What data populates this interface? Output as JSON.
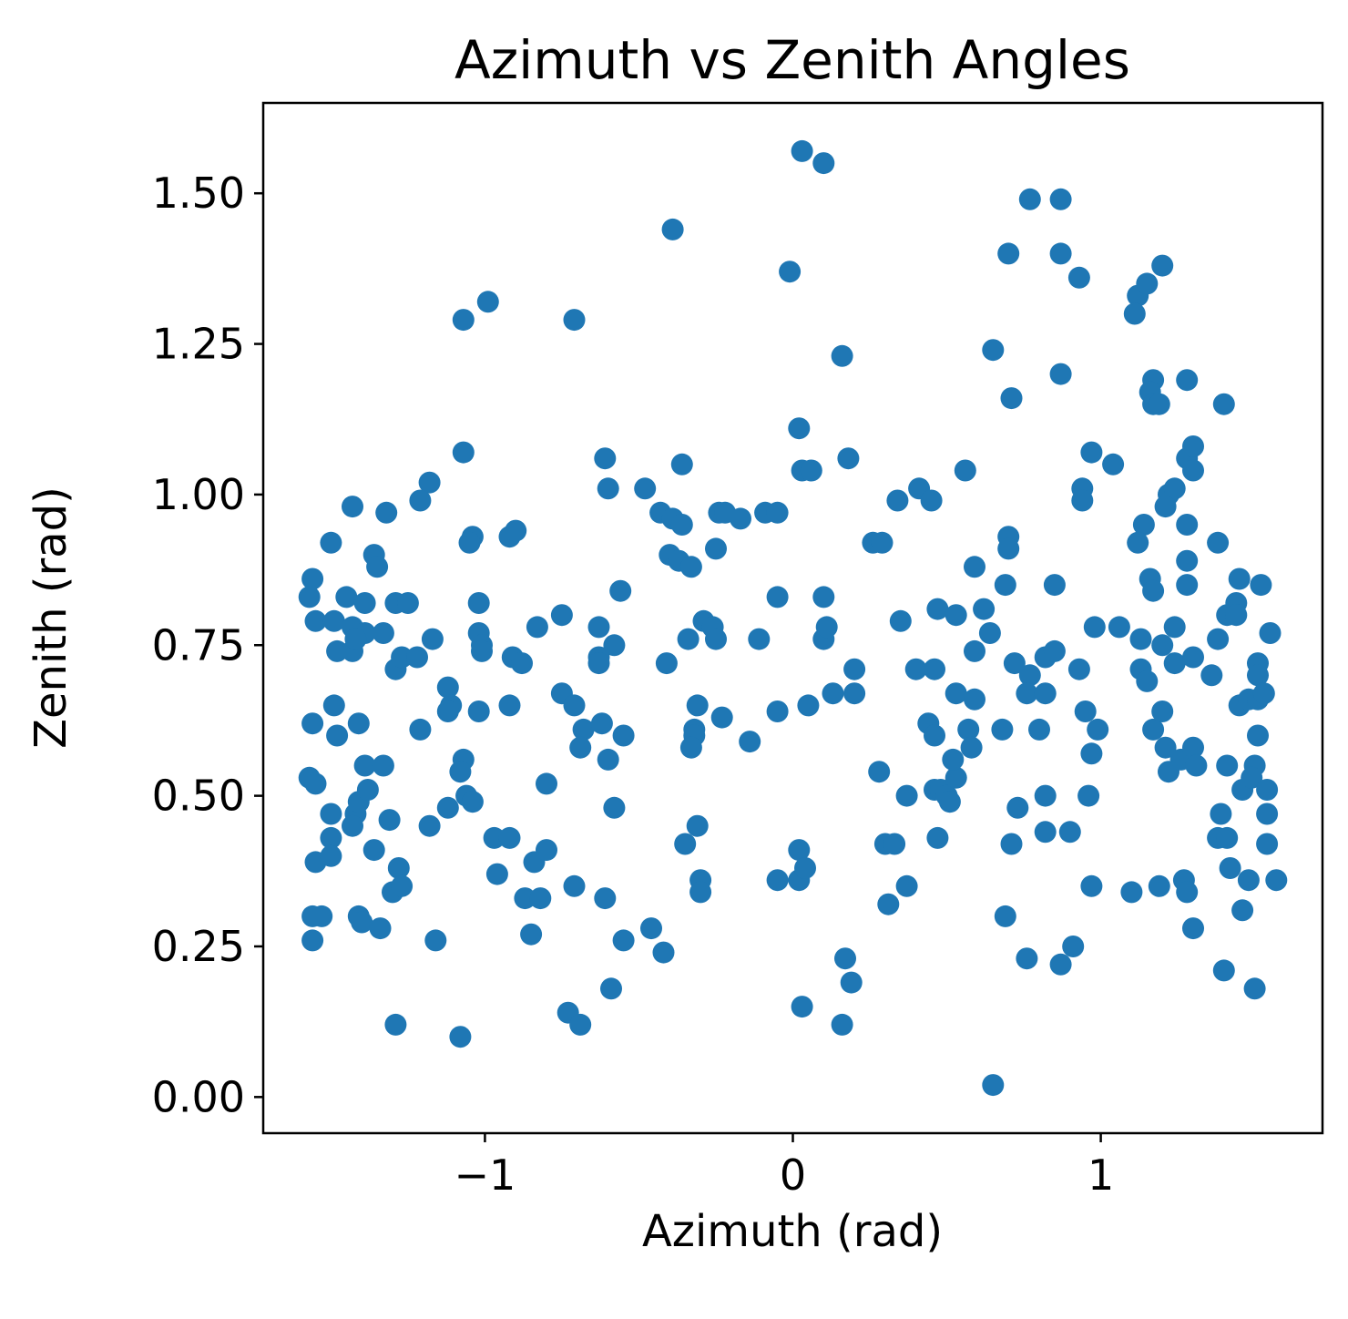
{
  "chart_data": {
    "type": "scatter",
    "title": "Azimuth vs Zenith Angles",
    "xlabel": "Azimuth (rad)",
    "ylabel": "Zenith (rad)",
    "xlim": [
      -1.72,
      1.72
    ],
    "ylim": [
      -0.06,
      1.65
    ],
    "grid": false,
    "marker_color": "#1f77b4",
    "x_ticks": [
      {
        "value": -1,
        "label": "−1"
      },
      {
        "value": 0,
        "label": "0"
      },
      {
        "value": 1,
        "label": "1"
      }
    ],
    "y_ticks": [
      {
        "value": 0.0,
        "label": "0.00"
      },
      {
        "value": 0.25,
        "label": "0.25"
      },
      {
        "value": 0.5,
        "label": "0.50"
      },
      {
        "value": 0.75,
        "label": "0.75"
      },
      {
        "value": 1.0,
        "label": "1.00"
      },
      {
        "value": 1.25,
        "label": "1.25"
      },
      {
        "value": 1.5,
        "label": "1.50"
      }
    ],
    "points": [
      [
        0.03,
        1.57
      ],
      [
        0.1,
        1.55
      ],
      [
        -0.39,
        1.44
      ],
      [
        0.77,
        1.49
      ],
      [
        0.87,
        1.49
      ],
      [
        0.7,
        1.4
      ],
      [
        0.87,
        1.4
      ],
      [
        -0.01,
        1.37
      ],
      [
        0.93,
        1.36
      ],
      [
        1.2,
        1.38
      ],
      [
        1.12,
        1.33
      ],
      [
        1.15,
        1.35
      ],
      [
        1.11,
        1.3
      ],
      [
        -0.99,
        1.32
      ],
      [
        -1.07,
        1.29
      ],
      [
        -0.71,
        1.29
      ],
      [
        0.65,
        1.24
      ],
      [
        0.16,
        1.23
      ],
      [
        0.87,
        1.2
      ],
      [
        1.17,
        1.19
      ],
      [
        1.28,
        1.19
      ],
      [
        0.71,
        1.16
      ],
      [
        1.16,
        1.17
      ],
      [
        1.17,
        1.15
      ],
      [
        1.19,
        1.15
      ],
      [
        1.4,
        1.15
      ],
      [
        0.02,
        1.11
      ],
      [
        -1.07,
        1.07
      ],
      [
        -0.61,
        1.06
      ],
      [
        0.18,
        1.06
      ],
      [
        0.97,
        1.07
      ],
      [
        1.04,
        1.05
      ],
      [
        1.28,
        1.06
      ],
      [
        1.3,
        1.08
      ],
      [
        1.3,
        1.04
      ],
      [
        0.03,
        1.04
      ],
      [
        0.06,
        1.04
      ],
      [
        -0.36,
        1.05
      ],
      [
        0.56,
        1.04
      ],
      [
        -0.6,
        1.01
      ],
      [
        -0.48,
        1.01
      ],
      [
        -1.18,
        1.02
      ],
      [
        -1.21,
        0.99
      ],
      [
        -1.43,
        0.98
      ],
      [
        -1.32,
        0.97
      ],
      [
        0.41,
        1.01
      ],
      [
        0.45,
        0.99
      ],
      [
        0.34,
        0.99
      ],
      [
        0.94,
        1.01
      ],
      [
        0.94,
        0.99
      ],
      [
        1.22,
        1.0
      ],
      [
        1.24,
        1.01
      ],
      [
        1.21,
        0.98
      ],
      [
        -0.43,
        0.97
      ],
      [
        -0.39,
        0.96
      ],
      [
        -0.36,
        0.95
      ],
      [
        -0.24,
        0.97
      ],
      [
        -0.22,
        0.97
      ],
      [
        -0.17,
        0.96
      ],
      [
        -0.09,
        0.97
      ],
      [
        -0.05,
        0.97
      ],
      [
        -1.5,
        0.92
      ],
      [
        -1.36,
        0.9
      ],
      [
        -1.35,
        0.88
      ],
      [
        -1.04,
        0.93
      ],
      [
        -1.05,
        0.92
      ],
      [
        -0.92,
        0.93
      ],
      [
        -0.9,
        0.94
      ],
      [
        -0.4,
        0.9
      ],
      [
        -0.37,
        0.89
      ],
      [
        -0.33,
        0.88
      ],
      [
        -0.25,
        0.91
      ],
      [
        0.26,
        0.92
      ],
      [
        0.29,
        0.92
      ],
      [
        0.7,
        0.93
      ],
      [
        0.7,
        0.91
      ],
      [
        1.14,
        0.95
      ],
      [
        1.12,
        0.92
      ],
      [
        1.28,
        0.95
      ],
      [
        1.38,
        0.92
      ],
      [
        1.28,
        0.89
      ],
      [
        -1.56,
        0.86
      ],
      [
        -1.57,
        0.83
      ],
      [
        -1.45,
        0.83
      ],
      [
        -1.39,
        0.82
      ],
      [
        -1.29,
        0.82
      ],
      [
        -1.25,
        0.82
      ],
      [
        -1.02,
        0.82
      ],
      [
        -0.05,
        0.83
      ],
      [
        0.1,
        0.83
      ],
      [
        0.59,
        0.88
      ],
      [
        0.69,
        0.85
      ],
      [
        0.85,
        0.85
      ],
      [
        1.16,
        0.86
      ],
      [
        1.17,
        0.84
      ],
      [
        1.28,
        0.85
      ],
      [
        1.45,
        0.86
      ],
      [
        1.52,
        0.85
      ],
      [
        -1.55,
        0.79
      ],
      [
        -1.49,
        0.79
      ],
      [
        -1.43,
        0.78
      ],
      [
        -1.39,
        0.77
      ],
      [
        -1.33,
        0.77
      ],
      [
        -1.17,
        0.76
      ],
      [
        -0.83,
        0.78
      ],
      [
        -0.75,
        0.8
      ],
      [
        -0.63,
        0.78
      ],
      [
        -0.56,
        0.84
      ],
      [
        -0.29,
        0.79
      ],
      [
        -0.26,
        0.78
      ],
      [
        0.47,
        0.81
      ],
      [
        0.53,
        0.8
      ],
      [
        0.62,
        0.81
      ],
      [
        0.64,
        0.77
      ],
      [
        0.35,
        0.79
      ],
      [
        0.98,
        0.78
      ],
      [
        1.06,
        0.78
      ],
      [
        1.24,
        0.78
      ],
      [
        1.41,
        0.8
      ],
      [
        1.44,
        0.82
      ],
      [
        1.44,
        0.8
      ],
      [
        1.55,
        0.77
      ],
      [
        -1.48,
        0.74
      ],
      [
        -1.43,
        0.74
      ],
      [
        -1.42,
        0.76
      ],
      [
        -1.29,
        0.71
      ],
      [
        -1.27,
        0.73
      ],
      [
        -1.22,
        0.73
      ],
      [
        -1.02,
        0.77
      ],
      [
        -1.01,
        0.75
      ],
      [
        -1.01,
        0.74
      ],
      [
        -0.91,
        0.73
      ],
      [
        -0.88,
        0.72
      ],
      [
        -0.63,
        0.73
      ],
      [
        -0.63,
        0.72
      ],
      [
        -0.58,
        0.75
      ],
      [
        -0.41,
        0.72
      ],
      [
        -0.34,
        0.76
      ],
      [
        -0.25,
        0.76
      ],
      [
        -0.11,
        0.76
      ],
      [
        0.1,
        0.76
      ],
      [
        0.11,
        0.78
      ],
      [
        0.2,
        0.71
      ],
      [
        0.59,
        0.74
      ],
      [
        0.4,
        0.71
      ],
      [
        0.46,
        0.71
      ],
      [
        0.72,
        0.72
      ],
      [
        0.77,
        0.7
      ],
      [
        0.82,
        0.73
      ],
      [
        0.85,
        0.74
      ],
      [
        0.93,
        0.71
      ],
      [
        1.13,
        0.76
      ],
      [
        1.13,
        0.71
      ],
      [
        1.15,
        0.69
      ],
      [
        1.2,
        0.75
      ],
      [
        1.24,
        0.72
      ],
      [
        1.3,
        0.73
      ],
      [
        1.38,
        0.76
      ],
      [
        1.36,
        0.7
      ],
      [
        1.51,
        0.72
      ],
      [
        1.51,
        0.7
      ],
      [
        -1.56,
        0.62
      ],
      [
        -1.49,
        0.65
      ],
      [
        -1.48,
        0.6
      ],
      [
        -1.41,
        0.62
      ],
      [
        -1.21,
        0.61
      ],
      [
        -1.12,
        0.68
      ],
      [
        -1.11,
        0.65
      ],
      [
        -1.12,
        0.64
      ],
      [
        -1.02,
        0.64
      ],
      [
        -0.92,
        0.65
      ],
      [
        -0.75,
        0.67
      ],
      [
        -0.71,
        0.65
      ],
      [
        -0.68,
        0.61
      ],
      [
        -0.69,
        0.58
      ],
      [
        -0.62,
        0.62
      ],
      [
        -0.6,
        0.56
      ],
      [
        -0.55,
        0.6
      ],
      [
        -0.32,
        0.61
      ],
      [
        -0.32,
        0.6
      ],
      [
        -0.33,
        0.58
      ],
      [
        -0.31,
        0.65
      ],
      [
        -0.23,
        0.63
      ],
      [
        -0.14,
        0.59
      ],
      [
        -0.05,
        0.64
      ],
      [
        0.13,
        0.67
      ],
      [
        0.05,
        0.65
      ],
      [
        0.2,
        0.67
      ],
      [
        0.44,
        0.62
      ],
      [
        0.46,
        0.6
      ],
      [
        0.53,
        0.67
      ],
      [
        0.57,
        0.61
      ],
      [
        0.58,
        0.58
      ],
      [
        0.59,
        0.66
      ],
      [
        0.68,
        0.61
      ],
      [
        0.76,
        0.67
      ],
      [
        0.8,
        0.61
      ],
      [
        0.82,
        0.67
      ],
      [
        0.95,
        0.64
      ],
      [
        0.99,
        0.61
      ],
      [
        0.97,
        0.57
      ],
      [
        1.17,
        0.61
      ],
      [
        1.2,
        0.64
      ],
      [
        1.21,
        0.58
      ],
      [
        1.22,
        0.54
      ],
      [
        1.26,
        0.56
      ],
      [
        1.3,
        0.58
      ],
      [
        1.31,
        0.55
      ],
      [
        1.45,
        0.65
      ],
      [
        1.48,
        0.66
      ],
      [
        1.51,
        0.66
      ],
      [
        1.53,
        0.67
      ],
      [
        1.41,
        0.55
      ],
      [
        1.5,
        0.55
      ],
      [
        1.51,
        0.6
      ],
      [
        -1.57,
        0.53
      ],
      [
        -1.55,
        0.52
      ],
      [
        -1.5,
        0.47
      ],
      [
        -1.42,
        0.47
      ],
      [
        -1.41,
        0.49
      ],
      [
        -1.38,
        0.51
      ],
      [
        -1.39,
        0.55
      ],
      [
        -1.33,
        0.55
      ],
      [
        -1.07,
        0.56
      ],
      [
        -1.08,
        0.54
      ],
      [
        -1.06,
        0.5
      ],
      [
        -1.04,
        0.49
      ],
      [
        -1.12,
        0.48
      ],
      [
        -0.8,
        0.52
      ],
      [
        -0.58,
        0.48
      ],
      [
        0.28,
        0.54
      ],
      [
        0.37,
        0.5
      ],
      [
        0.46,
        0.51
      ],
      [
        0.48,
        0.51
      ],
      [
        0.5,
        0.5
      ],
      [
        0.51,
        0.49
      ],
      [
        0.53,
        0.53
      ],
      [
        0.52,
        0.56
      ],
      [
        0.73,
        0.48
      ],
      [
        0.82,
        0.5
      ],
      [
        0.96,
        0.5
      ],
      [
        1.46,
        0.51
      ],
      [
        1.49,
        0.53
      ],
      [
        1.54,
        0.51
      ],
      [
        1.54,
        0.47
      ],
      [
        1.39,
        0.47
      ],
      [
        -1.5,
        0.43
      ],
      [
        -1.55,
        0.39
      ],
      [
        -1.5,
        0.4
      ],
      [
        -1.43,
        0.45
      ],
      [
        -1.36,
        0.41
      ],
      [
        -1.31,
        0.46
      ],
      [
        -1.28,
        0.38
      ],
      [
        -1.18,
        0.45
      ],
      [
        -0.97,
        0.43
      ],
      [
        -0.92,
        0.43
      ],
      [
        -0.96,
        0.37
      ],
      [
        -0.84,
        0.39
      ],
      [
        -0.8,
        0.41
      ],
      [
        -0.35,
        0.42
      ],
      [
        -0.31,
        0.45
      ],
      [
        -0.3,
        0.36
      ],
      [
        -0.3,
        0.34
      ],
      [
        0.02,
        0.41
      ],
      [
        0.02,
        0.36
      ],
      [
        0.04,
        0.38
      ],
      [
        -0.05,
        0.36
      ],
      [
        0.3,
        0.42
      ],
      [
        0.33,
        0.42
      ],
      [
        0.37,
        0.35
      ],
      [
        0.47,
        0.43
      ],
      [
        0.71,
        0.42
      ],
      [
        0.82,
        0.44
      ],
      [
        0.9,
        0.44
      ],
      [
        0.97,
        0.35
      ],
      [
        1.38,
        0.43
      ],
      [
        1.41,
        0.43
      ],
      [
        1.42,
        0.38
      ],
      [
        1.48,
        0.36
      ],
      [
        1.54,
        0.42
      ],
      [
        1.57,
        0.36
      ],
      [
        -1.56,
        0.3
      ],
      [
        -1.53,
        0.3
      ],
      [
        -1.56,
        0.26
      ],
      [
        -1.41,
        0.3
      ],
      [
        -1.4,
        0.29
      ],
      [
        -1.34,
        0.28
      ],
      [
        -1.3,
        0.34
      ],
      [
        -1.27,
        0.35
      ],
      [
        -1.16,
        0.26
      ],
      [
        -0.87,
        0.33
      ],
      [
        -0.82,
        0.33
      ],
      [
        -0.85,
        0.27
      ],
      [
        -0.71,
        0.35
      ],
      [
        -0.61,
        0.33
      ],
      [
        -0.55,
        0.26
      ],
      [
        -0.46,
        0.28
      ],
      [
        -0.42,
        0.24
      ],
      [
        0.31,
        0.32
      ],
      [
        0.69,
        0.3
      ],
      [
        0.91,
        0.25
      ],
      [
        1.1,
        0.34
      ],
      [
        1.19,
        0.35
      ],
      [
        1.27,
        0.36
      ],
      [
        1.28,
        0.34
      ],
      [
        1.3,
        0.28
      ],
      [
        1.46,
        0.31
      ],
      [
        0.17,
        0.23
      ],
      [
        0.19,
        0.19
      ],
      [
        -0.59,
        0.18
      ],
      [
        0.76,
        0.23
      ],
      [
        0.87,
        0.22
      ],
      [
        1.4,
        0.21
      ],
      [
        1.5,
        0.18
      ],
      [
        -1.29,
        0.12
      ],
      [
        -1.08,
        0.1
      ],
      [
        -0.73,
        0.14
      ],
      [
        -0.69,
        0.12
      ],
      [
        0.03,
        0.15
      ],
      [
        0.16,
        0.12
      ],
      [
        0.65,
        0.02
      ]
    ]
  }
}
